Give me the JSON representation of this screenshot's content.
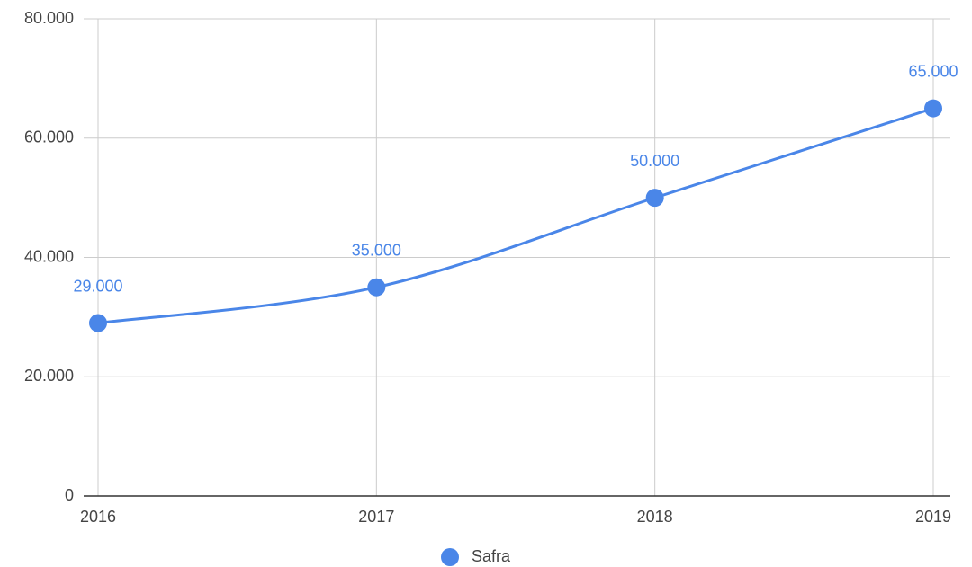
{
  "chart_data": {
    "type": "line",
    "categories": [
      "2016",
      "2017",
      "2018",
      "2019"
    ],
    "series": [
      {
        "name": "Safra",
        "color": "#4a86e8",
        "values": [
          29000,
          35000,
          50000,
          65000
        ],
        "value_labels": [
          "29.000",
          "35.000",
          "50.000",
          "65.000"
        ]
      }
    ],
    "ylim": [
      0,
      80000
    ],
    "yticks": [
      0,
      {
        "value": 20000,
        "label": "20.000"
      },
      {
        "value": 40000,
        "label": "40.000"
      },
      {
        "value": 60000,
        "label": "60.000"
      },
      {
        "value": 80000,
        "label": "80.000"
      }
    ],
    "grid": true,
    "legend": "bottom"
  }
}
